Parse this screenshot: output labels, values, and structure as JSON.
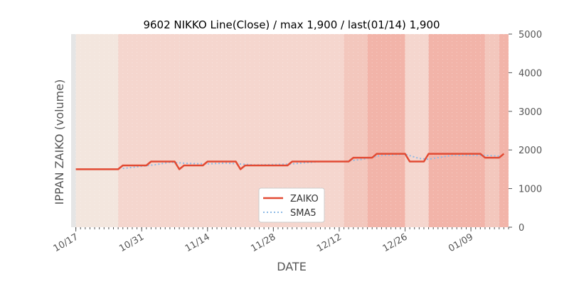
{
  "chart_data": {
    "type": "line",
    "title": "9602 NIKKO Line(Close) / max 1,900 / last(01/14) 1,900",
    "xlabel": "DATE",
    "ylabel": "IPPAN ZAIKO (volume)",
    "ylim": [
      0,
      5000
    ],
    "y_ticks": [
      "0",
      "1000",
      "2000",
      "3000",
      "4000",
      "5000"
    ],
    "y_tick_values": [
      0,
      1000,
      2000,
      3000,
      4000,
      5000
    ],
    "y_axis_side": "right",
    "x_ticks": [
      "10/17",
      "10/31",
      "11/14",
      "11/28",
      "12/12",
      "12/26",
      "01/09"
    ],
    "x_tick_dates": [
      "2019-10-17",
      "2019-10-31",
      "2019-11-14",
      "2019-11-28",
      "2019-12-12",
      "2019-12-26",
      "2020-01-09"
    ],
    "xlim": [
      "2019-10-16",
      "2020-01-17"
    ],
    "legend_position": "lower-center",
    "grid": false,
    "background_bands": [
      {
        "from": "2019-10-17",
        "to": "2019-10-26",
        "level": 0
      },
      {
        "from": "2019-10-26",
        "to": "2019-11-08",
        "level": 1
      },
      {
        "from": "2019-11-08",
        "to": "2019-11-22",
        "level": 1
      },
      {
        "from": "2019-11-22",
        "to": "2019-12-13",
        "level": 1
      },
      {
        "from": "2019-12-13",
        "to": "2019-12-18",
        "level": 2
      },
      {
        "from": "2019-12-18",
        "to": "2019-12-26",
        "level": 3
      },
      {
        "from": "2019-12-26",
        "to": "2019-12-31",
        "level": 1
      },
      {
        "from": "2019-12-31",
        "to": "2020-01-12",
        "level": 3
      },
      {
        "from": "2020-01-12",
        "to": "2020-01-15",
        "level": 2
      },
      {
        "from": "2020-01-15",
        "to": "2020-01-17",
        "level": 3
      }
    ],
    "series": [
      {
        "name": "ZAIKO",
        "style": "solid",
        "color": "#E24A33",
        "x": [
          "2019-10-17",
          "2019-10-26",
          "2019-10-27",
          "2019-11-01",
          "2019-11-02",
          "2019-11-07",
          "2019-11-08",
          "2019-11-09",
          "2019-11-13",
          "2019-11-14",
          "2019-11-20",
          "2019-11-21",
          "2019-11-22",
          "2019-12-01",
          "2019-12-02",
          "2019-12-14",
          "2019-12-15",
          "2019-12-19",
          "2019-12-20",
          "2019-12-26",
          "2019-12-27",
          "2019-12-30",
          "2019-12-31",
          "2020-01-11",
          "2020-01-12",
          "2020-01-15",
          "2020-01-16"
        ],
        "y": [
          1500,
          1500,
          1600,
          1600,
          1700,
          1700,
          1500,
          1600,
          1600,
          1700,
          1700,
          1500,
          1600,
          1600,
          1700,
          1700,
          1800,
          1800,
          1900,
          1900,
          1700,
          1700,
          1900,
          1900,
          1800,
          1800,
          1900
        ]
      },
      {
        "name": "SMA5",
        "style": "dotted",
        "color": "#8EBAE5",
        "x": [
          "2019-10-27",
          "2019-11-03",
          "2019-11-06",
          "2019-11-10",
          "2019-11-14",
          "2019-11-18",
          "2019-11-24",
          "2019-12-01",
          "2019-12-08",
          "2019-12-13",
          "2019-12-17",
          "2019-12-21",
          "2019-12-26",
          "2019-12-29",
          "2019-12-31",
          "2020-01-05",
          "2020-01-12",
          "2020-01-15"
        ],
        "y": [
          1520,
          1620,
          1680,
          1650,
          1640,
          1660,
          1610,
          1630,
          1700,
          1700,
          1760,
          1860,
          1890,
          1780,
          1760,
          1860,
          1860,
          1840
        ]
      }
    ]
  }
}
